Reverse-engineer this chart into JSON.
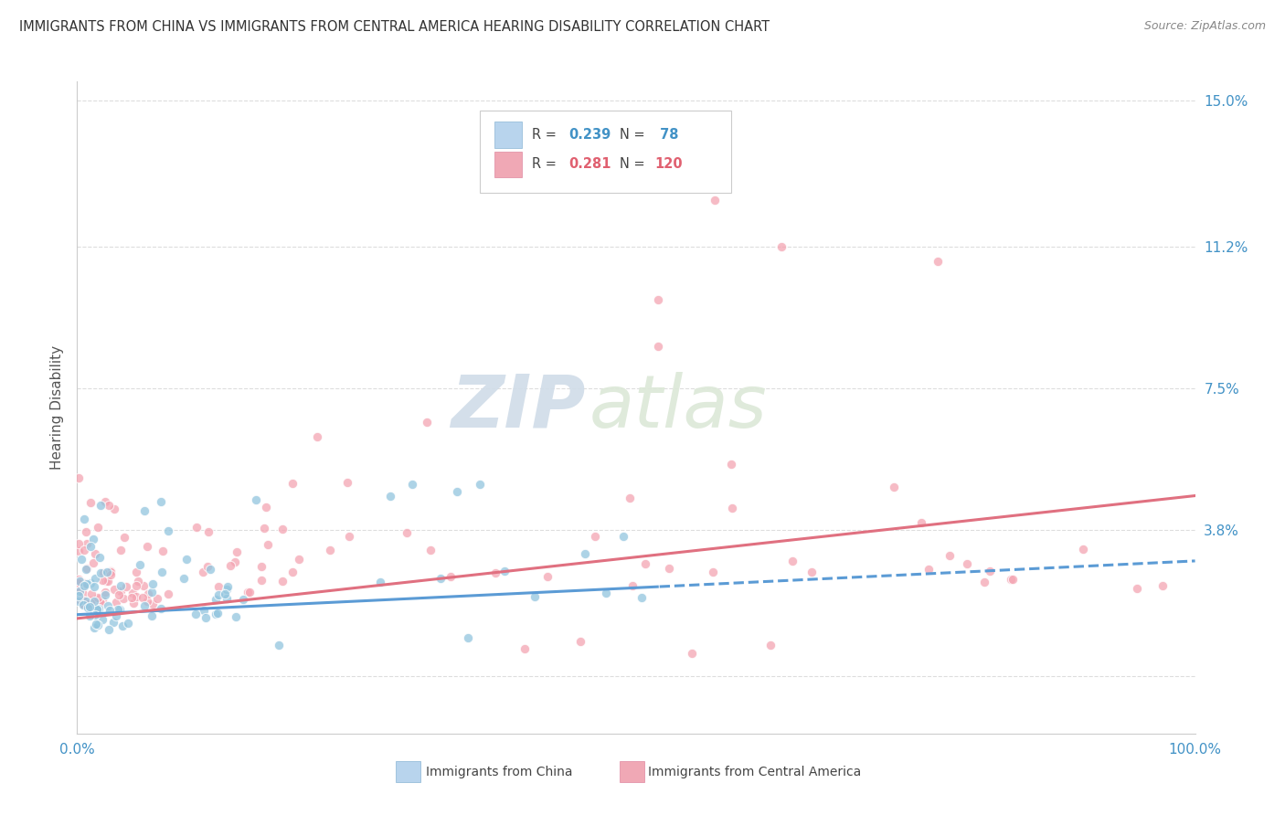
{
  "title": "IMMIGRANTS FROM CHINA VS IMMIGRANTS FROM CENTRAL AMERICA HEARING DISABILITY CORRELATION CHART",
  "source": "Source: ZipAtlas.com",
  "ylabel": "Hearing Disability",
  "ytick_vals": [
    0.0,
    0.038,
    0.075,
    0.112,
    0.15
  ],
  "ytick_labels": [
    "",
    "3.8%",
    "7.5%",
    "11.2%",
    "15.0%"
  ],
  "xtick_left": "0.0%",
  "xtick_right": "100.0%",
  "color_china": "#92c5de",
  "color_central": "#f4a4b2",
  "color_china_line": "#5b9bd5",
  "color_central_line": "#e07080",
  "watermark_zip": "ZIP",
  "watermark_atlas": "atlas",
  "legend_r1": "R = 0.239",
  "legend_n1": "N =  78",
  "legend_r2": "R = 0.281",
  "legend_n2": "N = 120",
  "legend_color_val": "#4292c6",
  "legend_color_val2": "#e06070",
  "bottom_legend_china": "Immigrants from China",
  "bottom_legend_central": "Immigrants from Central America",
  "xlim": [
    0.0,
    1.0
  ],
  "ylim": [
    -0.015,
    0.155
  ],
  "china_line_intercept": 0.016,
  "china_line_slope": 0.014,
  "china_line_split": 0.52,
  "central_line_intercept": 0.015,
  "central_line_slope": 0.032
}
